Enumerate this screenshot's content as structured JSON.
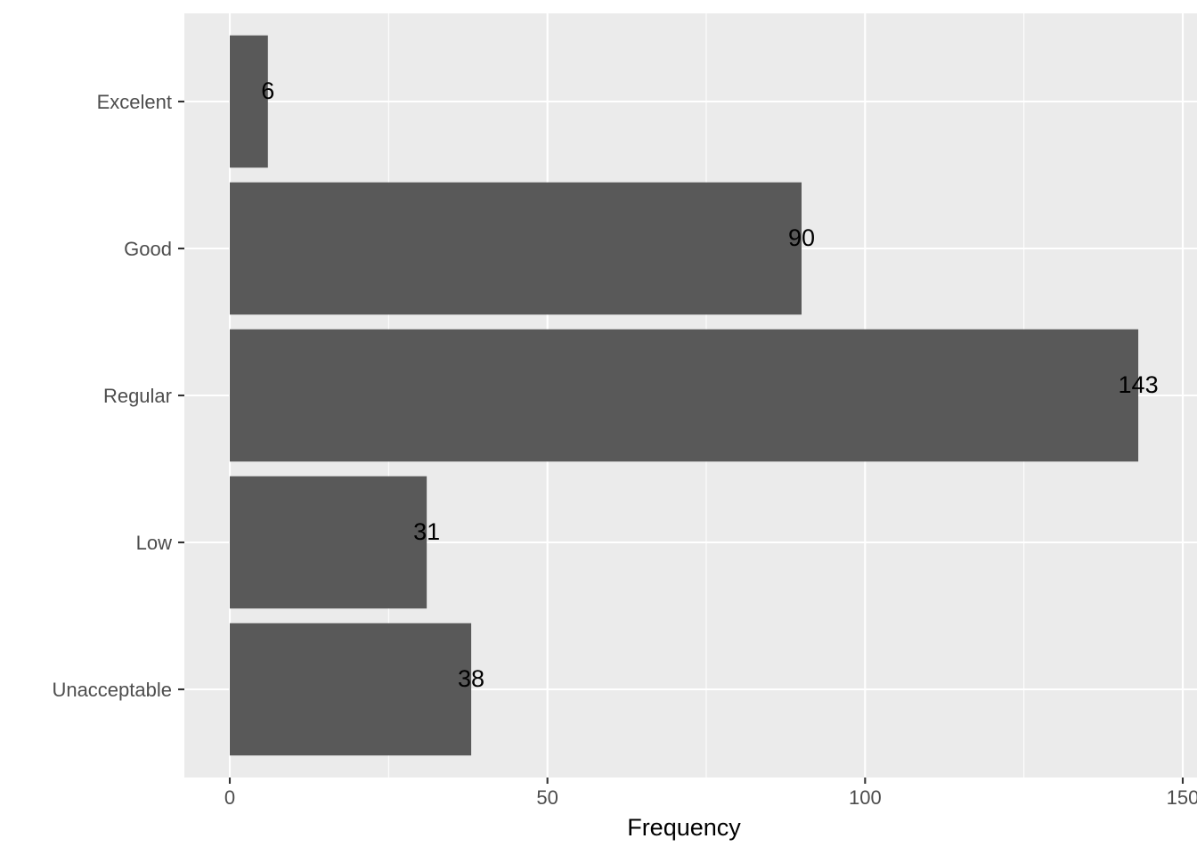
{
  "chart_data": {
    "type": "bar",
    "orientation": "horizontal",
    "categories": [
      "Unacceptable",
      "Low",
      "Regular",
      "Good",
      "Excelent"
    ],
    "values": [
      38,
      31,
      143,
      90,
      6
    ],
    "data_labels": [
      "38",
      "31",
      "143",
      "90",
      "6"
    ],
    "xlabel": "Frequency",
    "ylabel": "",
    "title": "",
    "xlim": [
      -7.15,
      150.15
    ],
    "x_ticks": [
      0,
      50,
      100,
      150
    ],
    "x_tick_labels": [
      "0",
      "50",
      "100",
      "150"
    ],
    "x_minor_ticks": [
      25,
      75,
      125
    ],
    "grid": true,
    "legend": "none",
    "colors": {
      "bar": "#595959",
      "panel": "#ebebeb",
      "grid": "#ffffff",
      "tick_text": "#4d4d4d",
      "label_text": "#000000"
    }
  }
}
